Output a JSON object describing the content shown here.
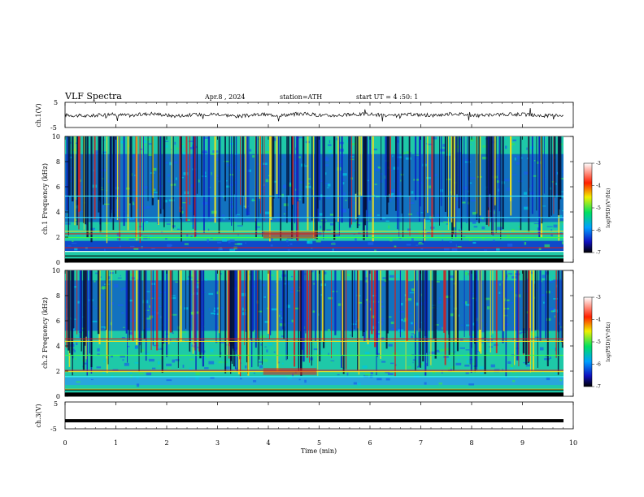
{
  "header": {
    "title": "VLF Spectra",
    "date": "Apr.8 , 2024",
    "station": "station=ATH",
    "start": "start UT = 4 :50: 1"
  },
  "colors": {
    "spectrogram_bg": "#1ec9a8",
    "band_dark": "#0a2ad2",
    "stripe_dark": "#04103a",
    "line_red": "#d02020",
    "line_yellow": "#f0e020",
    "trace": "#000000"
  },
  "chart_data": [
    {
      "type": "line",
      "ylabel": "ch.1(V)",
      "ylim": [
        -5,
        5
      ],
      "yticks": [
        "5",
        "-5"
      ],
      "series": [
        {
          "values": [
            0.0,
            -0.5,
            0.3,
            -0.2,
            0.6,
            -0.4,
            0.1,
            0.4,
            -0.6,
            0.2,
            -0.1,
            0.5,
            -0.3,
            0.0,
            0.4,
            -0.5,
            0.2,
            -0.2,
            0.6,
            -0.3,
            0.1,
            0.3,
            -0.4,
            0.0
          ]
        }
      ]
    },
    {
      "type": "heatmap",
      "ylabel": "ch.1 Frequency (kHz)",
      "ylim": [
        0,
        10
      ],
      "yticks": [
        "0",
        "2",
        "4",
        "6",
        "8",
        "10"
      ],
      "colorbar": {
        "label": "log(PSD)(V²/Hz)",
        "ticks": [
          "-3",
          "-4",
          "-5",
          "-6",
          "-7"
        ],
        "range": [
          -7,
          -3
        ]
      }
    },
    {
      "type": "heatmap",
      "ylabel": "ch.2 Frequency (kHz)",
      "ylim": [
        0,
        10
      ],
      "yticks": [
        "0",
        "2",
        "4",
        "6",
        "8",
        "10"
      ],
      "colorbar": {
        "label": "log(PSD)(V²/Hz)",
        "ticks": [
          "-3",
          "-4",
          "-5",
          "-6",
          "-7"
        ],
        "range": [
          -7,
          -3
        ]
      }
    },
    {
      "type": "line",
      "ylabel": "ch.3(V)",
      "ylim": [
        -5,
        5
      ],
      "yticks": [
        "5",
        "-5"
      ],
      "series": [
        {
          "values": [
            -2.0,
            -2.0,
            -2.0,
            -2.0,
            -2.0,
            -2.0
          ]
        }
      ]
    }
  ],
  "xaxis": {
    "label": "Time (min)",
    "ticks": [
      "0",
      "1",
      "2",
      "3",
      "4",
      "5",
      "6",
      "7",
      "8",
      "9",
      "10"
    ],
    "xlim": [
      0,
      10
    ]
  }
}
